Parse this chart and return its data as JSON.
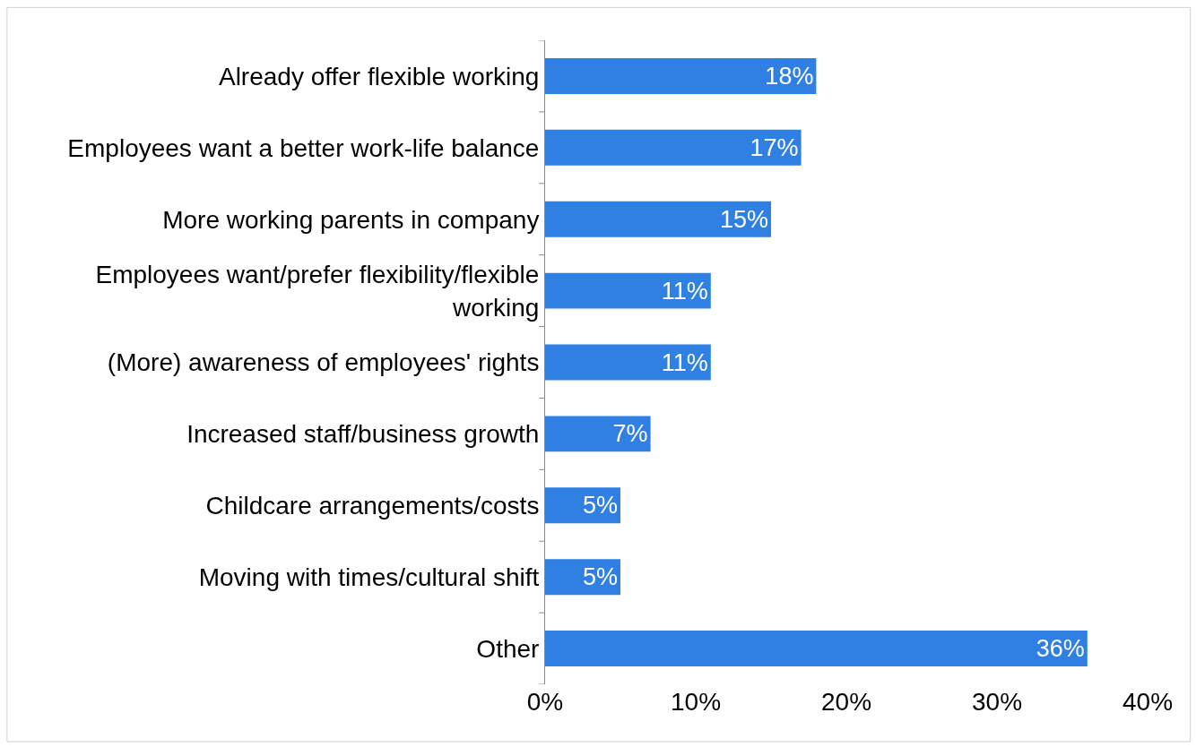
{
  "chart_data": {
    "type": "bar",
    "orientation": "horizontal",
    "categories": [
      "Already offer flexible working",
      "Employees want a better work-life balance",
      "More working parents in company",
      "Employees want/prefer flexibility/flexible working",
      "(More) awareness of employees' rights",
      "Increased staff/business growth",
      "Childcare arrangements/costs",
      "Moving with times/cultural shift",
      "Other"
    ],
    "values": [
      18,
      17,
      15,
      11,
      11,
      7,
      5,
      5,
      36
    ],
    "value_labels": [
      "18%",
      "17%",
      "15%",
      "11%",
      "11%",
      "7%",
      "5%",
      "5%",
      "36%"
    ],
    "color": "#2f80e2",
    "xlim": [
      0,
      40
    ],
    "xticks": [
      {
        "value": 0,
        "label": "0%"
      },
      {
        "value": 10,
        "label": "10%"
      },
      {
        "value": 20,
        "label": "20%"
      },
      {
        "value": 30,
        "label": "30%"
      },
      {
        "value": 40,
        "label": "40%"
      }
    ],
    "legend": false
  }
}
